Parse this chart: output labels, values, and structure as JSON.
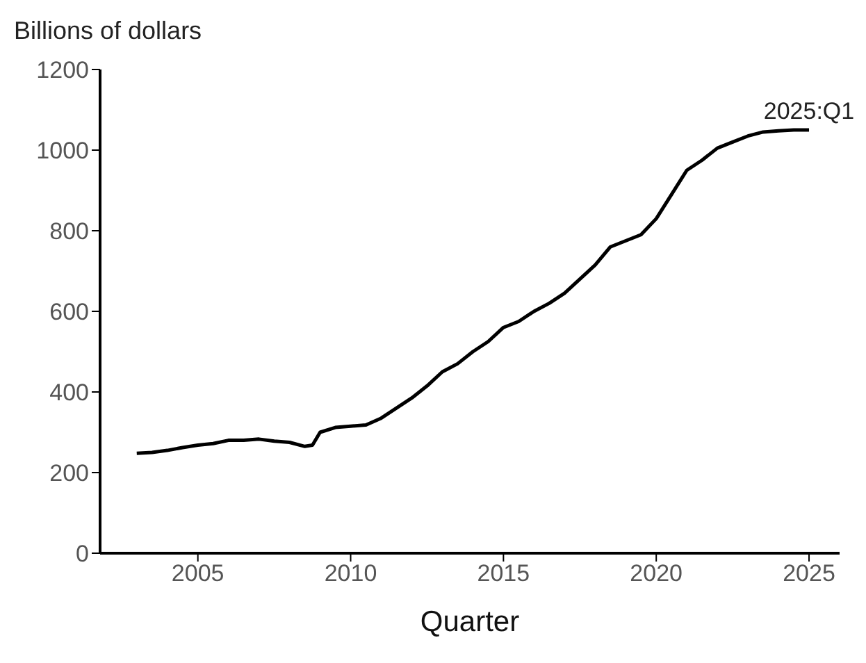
{
  "chart_data": {
    "type": "line",
    "ylabel": "Billions of dollars",
    "xlabel": "Quarter",
    "x": [
      2003,
      2003.5,
      2004,
      2004.5,
      2005,
      2005.5,
      2006,
      2006.5,
      2007,
      2007.5,
      2008,
      2008.5,
      2008.75,
      2009,
      2009.5,
      2010,
      2010.5,
      2011,
      2011.5,
      2012,
      2012.5,
      2013,
      2013.5,
      2014,
      2014.5,
      2015,
      2015.5,
      2016,
      2016.5,
      2017,
      2017.5,
      2018,
      2018.5,
      2019,
      2019.5,
      2020,
      2020.5,
      2021,
      2021.5,
      2022,
      2022.5,
      2023,
      2023.5,
      2024,
      2024.5,
      2025
    ],
    "series": [
      {
        "color": "#000000",
        "values": [
          248,
          250,
          255,
          262,
          268,
          272,
          280,
          280,
          283,
          278,
          275,
          265,
          268,
          300,
          312,
          315,
          318,
          335,
          360,
          385,
          415,
          450,
          470,
          500,
          525,
          560,
          575,
          600,
          620,
          645,
          680,
          715,
          760,
          775,
          790,
          830,
          890,
          950,
          975,
          1005,
          1020,
          1035,
          1045,
          1048,
          1050,
          1050
        ]
      }
    ],
    "xlim": [
      2001.8,
      2026
    ],
    "xticks": [
      2005,
      2010,
      2015,
      2020,
      2025
    ],
    "ylim": [
      0,
      1200
    ],
    "yticks": [
      0,
      200,
      400,
      600,
      800,
      1000,
      1200
    ],
    "annotations": [
      {
        "text": "2025:Q1",
        "x": 2025,
        "y": 1050
      }
    ],
    "grid": false
  }
}
